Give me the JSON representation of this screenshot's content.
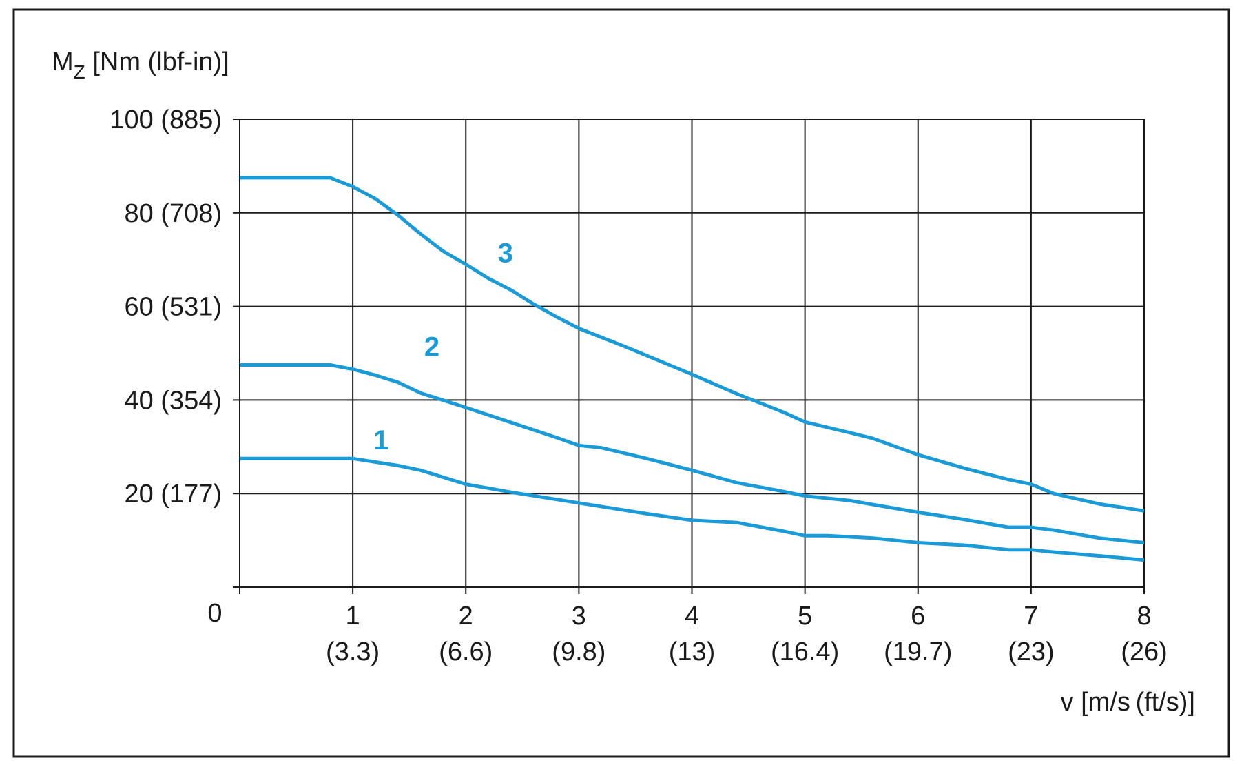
{
  "chart_data": {
    "type": "line",
    "title": "",
    "ylabel": {
      "main": "M",
      "sub": "Z",
      "rest": " [Nm (lbf-in)]"
    },
    "xlabel": "v [m/s (ft/s)]",
    "xlim": [
      0,
      8
    ],
    "ylim": [
      0,
      100
    ],
    "grid": true,
    "origin_label": "0",
    "x_ticks": [
      {
        "value": 1,
        "label": "1",
        "sublabel": "(3.3)"
      },
      {
        "value": 2,
        "label": "2",
        "sublabel": "(6.6)"
      },
      {
        "value": 3,
        "label": "3",
        "sublabel": "(9.8)"
      },
      {
        "value": 4,
        "label": "4",
        "sublabel": "(13)"
      },
      {
        "value": 5,
        "label": "5",
        "sublabel": "(16.4)"
      },
      {
        "value": 6,
        "label": "6",
        "sublabel": "(19.7)"
      },
      {
        "value": 7,
        "label": "7",
        "sublabel": "(23)"
      },
      {
        "value": 8,
        "label": "8",
        "sublabel": "(26)"
      }
    ],
    "y_ticks": [
      {
        "value": 20,
        "label": "20 (177)"
      },
      {
        "value": 40,
        "label": "40 (354)"
      },
      {
        "value": 60,
        "label": "60 (531)"
      },
      {
        "value": 80,
        "label": "80 (708)"
      },
      {
        "value": 100,
        "label": "100 (885)"
      }
    ],
    "line_color": "#1a9bd7",
    "series": [
      {
        "name": "1",
        "label_at": [
          1.25,
          31.5
        ],
        "x": [
          0,
          0.8,
          1.0,
          1.4,
          1.6,
          2.0,
          2.4,
          3.0,
          3.6,
          4.0,
          4.4,
          4.8,
          5.0,
          5.2,
          5.6,
          6.0,
          6.4,
          6.8,
          7.0,
          7.2,
          7.6,
          8.0
        ],
        "y": [
          27.5,
          27.5,
          27.5,
          26.0,
          25.0,
          22.0,
          20.3,
          18.0,
          15.7,
          14.3,
          13.8,
          12.0,
          11.0,
          11.0,
          10.5,
          9.5,
          9.0,
          8.0,
          8.0,
          7.5,
          6.7,
          5.8
        ]
      },
      {
        "name": "2",
        "label_at": [
          1.7,
          51.5
        ],
        "x": [
          0,
          0.8,
          1.0,
          1.2,
          1.4,
          1.6,
          2.0,
          2.4,
          2.8,
          3.0,
          3.2,
          3.6,
          4.0,
          4.4,
          4.8,
          5.0,
          5.4,
          6.0,
          6.4,
          6.8,
          7.0,
          7.2,
          7.6,
          8.0
        ],
        "y": [
          47.5,
          47.5,
          46.6,
          45.3,
          43.8,
          41.5,
          38.4,
          35.2,
          32.0,
          30.3,
          29.8,
          27.5,
          25.0,
          22.3,
          20.5,
          19.5,
          18.5,
          16.0,
          14.5,
          12.8,
          12.8,
          12.2,
          10.5,
          9.5
        ]
      },
      {
        "name": "3",
        "label_at": [
          2.35,
          71.5
        ],
        "x": [
          0,
          0.5,
          0.8,
          1.0,
          1.2,
          1.4,
          1.6,
          1.8,
          2.0,
          2.2,
          2.4,
          2.6,
          2.8,
          3.0,
          3.4,
          3.8,
          4.0,
          4.4,
          4.8,
          5.0,
          5.4,
          5.6,
          6.0,
          6.4,
          6.8,
          7.0,
          7.2,
          7.6,
          8.0
        ],
        "y": [
          87.5,
          87.5,
          87.5,
          85.6,
          83.0,
          79.5,
          75.5,
          71.8,
          69.0,
          66.0,
          63.5,
          60.5,
          57.8,
          55.3,
          51.5,
          47.5,
          45.5,
          41.3,
          37.5,
          35.3,
          33.0,
          31.8,
          28.3,
          25.5,
          23.0,
          22.0,
          20.0,
          17.8,
          16.3
        ]
      }
    ]
  }
}
